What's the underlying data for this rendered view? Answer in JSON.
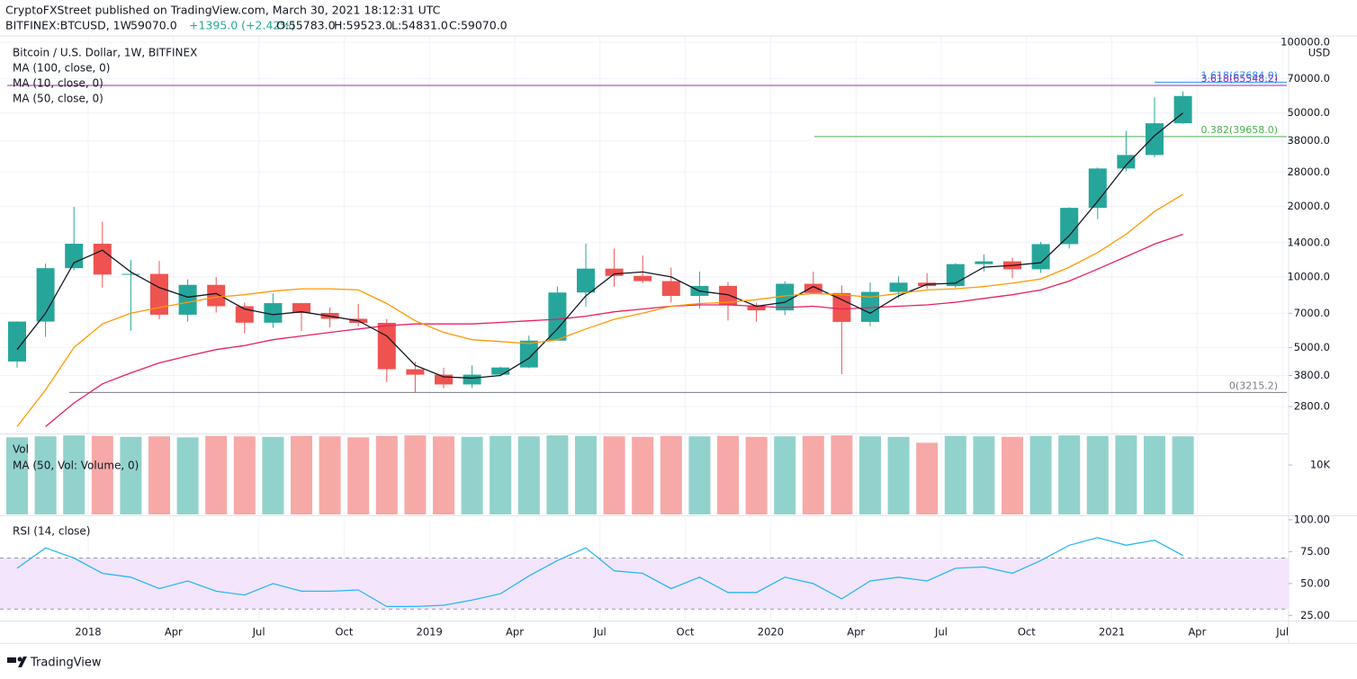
{
  "header": {
    "publisher": "CryptoFXStreet published on TradingView.com, March 30, 2021 18:12:31 UTC",
    "symbol": "BITFINEX:BTCUSD, 1W",
    "last": "59070.0",
    "change": "+1395.0 (+2.42%)",
    "ohlc": [
      "O:55783.0",
      "H:59523.0",
      "L:54831.0",
      "C:59070.0"
    ],
    "footer": "TradingView"
  },
  "chart_data": [
    {
      "type": "candlestick",
      "title": "Bitcoin / U.S. Dollar, 1W, BITFINEX",
      "y_unit": "USD",
      "x": [
        "2017-10",
        "2017-11",
        "2017-12",
        "2018-01",
        "2018-02",
        "2018-03",
        "2018-04",
        "2018-05",
        "2018-06",
        "2018-07",
        "2018-08",
        "2018-09",
        "2018-10",
        "2018-11",
        "2018-12",
        "2019-01",
        "2019-02",
        "2019-03",
        "2019-04",
        "2019-05",
        "2019-06",
        "2019-07",
        "2019-08",
        "2019-09",
        "2019-10",
        "2019-11",
        "2019-12",
        "2020-01",
        "2020-02",
        "2020-03",
        "2020-04",
        "2020-05",
        "2020-06",
        "2020-07",
        "2020-08",
        "2020-09",
        "2020-10",
        "2020-11",
        "2020-12",
        "2021-01",
        "2021-02",
        "2021-03"
      ],
      "open": [
        4360,
        6450,
        10900,
        13850,
        10230,
        10300,
        6900,
        9250,
        7500,
        6380,
        7730,
        7020,
        6630,
        6370,
        4040,
        3830,
        3480,
        3830,
        4110,
        5350,
        8580,
        10850,
        10100,
        9600,
        8300,
        9150,
        7570,
        7200,
        9350,
        8540,
        6430,
        8630,
        9450,
        9140,
        11340,
        11650,
        10780,
        13800,
        19700,
        28990,
        33100,
        45200
      ],
      "high": [
        6470,
        11400,
        19890,
        17200,
        11800,
        11700,
        9760,
        9990,
        7780,
        8500,
        7750,
        7410,
        7680,
        6620,
        4350,
        4100,
        4190,
        4140,
        5620,
        9100,
        13880,
        13200,
        12330,
        10950,
        10540,
        9520,
        7750,
        9580,
        10520,
        9190,
        9470,
        10070,
        10380,
        11440,
        12480,
        12070,
        14100,
        19800,
        29300,
        41950,
        58350,
        61780
      ],
      "low": [
        4100,
        5550,
        10700,
        9000,
        5900,
        6600,
        6450,
        7050,
        5750,
        6070,
        5880,
        6100,
        6160,
        3560,
        3200,
        3350,
        3360,
        3770,
        4080,
        5350,
        7470,
        9080,
        9400,
        7780,
        7330,
        6520,
        6430,
        6870,
        8450,
        3850,
        6160,
        8130,
        8900,
        8990,
        10560,
        9880,
        10400,
        13230,
        17600,
        28200,
        32300,
        44950
      ],
      "close": [
        6450,
        10900,
        13850,
        10230,
        10300,
        6900,
        9250,
        7500,
        6380,
        7730,
        7020,
        6630,
        6370,
        4040,
        3830,
        3480,
        3830,
        4110,
        5350,
        8580,
        10850,
        10100,
        9600,
        8300,
        9150,
        7570,
        7200,
        9350,
        8540,
        6430,
        8630,
        9450,
        9140,
        11340,
        11650,
        10780,
        13800,
        19700,
        28990,
        33100,
        45200,
        59070
      ],
      "up_color": "#26a69a",
      "down_color": "#ef5350",
      "series": [
        {
          "name": "MA (100, close, 0)",
          "color": "#e91e63",
          "values": [
            null,
            2300,
            2900,
            3500,
            3900,
            4300,
            4600,
            4900,
            5100,
            5400,
            5600,
            5800,
            6000,
            6200,
            6300,
            6300,
            6300,
            6400,
            6500,
            6600,
            6800,
            7100,
            7300,
            7500,
            7600,
            7600,
            7500,
            7400,
            7500,
            7300,
            7400,
            7500,
            7600,
            7800,
            8100,
            8400,
            8800,
            9600,
            10800,
            12200,
            13800,
            15200
          ]
        },
        {
          "name": "MA (10, close, 0)",
          "color": "#131722",
          "values": [
            4900,
            7000,
            11500,
            13000,
            10500,
            9000,
            8200,
            8500,
            7300,
            6900,
            7100,
            6800,
            6500,
            5600,
            4200,
            3750,
            3700,
            3800,
            4500,
            6000,
            8300,
            10300,
            10500,
            10000,
            8700,
            8400,
            7500,
            7800,
            9100,
            8000,
            7000,
            8300,
            9300,
            9400,
            11000,
            11200,
            11500,
            15000,
            21000,
            30000,
            40000,
            50000
          ]
        },
        {
          "name": "MA (50, close, 0)",
          "color": "#ff9800",
          "values": [
            2300,
            3300,
            5000,
            6300,
            7000,
            7400,
            7800,
            8200,
            8400,
            8700,
            8900,
            8900,
            8800,
            7700,
            6500,
            5800,
            5400,
            5300,
            5200,
            5400,
            6000,
            6600,
            7000,
            7500,
            7700,
            7800,
            8000,
            8300,
            8500,
            8400,
            8200,
            8500,
            8800,
            8900,
            9100,
            9400,
            9800,
            11000,
            12700,
            15200,
            19000,
            22500
          ]
        }
      ],
      "log_scale": true,
      "grid": true,
      "ylim": [
        2150,
        106500
      ],
      "yticks": [
        {
          "value": 100000,
          "label": "100000.0"
        },
        {
          "value": 70000,
          "label": "70000.0"
        },
        {
          "value": 50000,
          "label": "50000.0"
        },
        {
          "value": 38000,
          "label": "38000.0"
        },
        {
          "value": 28000,
          "label": "28000.0"
        },
        {
          "value": 20000,
          "label": "20000.0"
        },
        {
          "value": 14000,
          "label": "14000.0"
        },
        {
          "value": 10000,
          "label": "10000.0"
        },
        {
          "value": 7000,
          "label": "7000.0"
        },
        {
          "value": 5000,
          "label": "5000.0"
        },
        {
          "value": 3800,
          "label": "3800.0"
        },
        {
          "value": 2800,
          "label": "2800.0"
        }
      ],
      "xticks": [
        {
          "value": "2018-01",
          "label": "2018"
        },
        {
          "value": "2018-04",
          "label": "Apr"
        },
        {
          "value": "2018-07",
          "label": "Jul"
        },
        {
          "value": "2018-10",
          "label": "Oct"
        },
        {
          "value": "2019-01",
          "label": "2019"
        },
        {
          "value": "2019-04",
          "label": "Apr"
        },
        {
          "value": "2019-07",
          "label": "Jul"
        },
        {
          "value": "2019-10",
          "label": "Oct"
        },
        {
          "value": "2020-01",
          "label": "2020"
        },
        {
          "value": "2020-04",
          "label": "Apr"
        },
        {
          "value": "2020-07",
          "label": "Jul"
        },
        {
          "value": "2020-10",
          "label": "Oct"
        },
        {
          "value": "2021-01",
          "label": "2021"
        },
        {
          "value": "2021-04",
          "label": "Apr"
        },
        {
          "value": "2021-07",
          "label": "Jul"
        }
      ],
      "annotations": [
        {
          "label": "1.618(67684.0)",
          "value": 67684.0,
          "color": "#2196f3"
        },
        {
          "label": "3.618(65548.2)",
          "value": 65548.2,
          "color": "#9c27b0"
        },
        {
          "label": "0.382(39658.0)",
          "value": 39658.0,
          "color": "#4caf50"
        },
        {
          "label": "0(3215.2)",
          "value": 3215.2,
          "color": "#787b86"
        }
      ]
    },
    {
      "type": "bar",
      "title": "Vol",
      "subtitle": "MA (50, Vol: Volume, 0)",
      "values": [
        15600,
        15800,
        16000,
        15900,
        15700,
        15800,
        15600,
        15900,
        15800,
        15700,
        15900,
        15800,
        15600,
        15900,
        16000,
        15800,
        15700,
        15900,
        15800,
        16000,
        15900,
        15800,
        15700,
        15900,
        15800,
        15900,
        15700,
        15800,
        15900,
        16000,
        15800,
        15700,
        14500,
        15900,
        15800,
        15700,
        15900,
        16000,
        15900,
        16000,
        15900,
        15800
      ],
      "ylim": [
        0,
        16200
      ],
      "yticks": [
        {
          "value": 10000,
          "label": "10K"
        }
      ]
    },
    {
      "type": "line",
      "title": "RSI (14, close)",
      "color": "#29b6f6",
      "band": [
        30,
        70
      ],
      "band_color": "#f3e5fb",
      "values": [
        62,
        78,
        70,
        58,
        55,
        46,
        52,
        44,
        41,
        50,
        44,
        44,
        45,
        32,
        32,
        33,
        37,
        42,
        56,
        68,
        78,
        60,
        58,
        46,
        55,
        43,
        43,
        55,
        50,
        38,
        52,
        55,
        52,
        62,
        63,
        58,
        68,
        80,
        86,
        80,
        84,
        72
      ],
      "ylim": [
        21,
        102.8
      ],
      "yticks": [
        {
          "value": 100,
          "label": "100.00"
        },
        {
          "value": 75,
          "label": "75.00"
        },
        {
          "value": 50,
          "label": "50.00"
        },
        {
          "value": 25,
          "label": "25.00"
        }
      ]
    }
  ]
}
